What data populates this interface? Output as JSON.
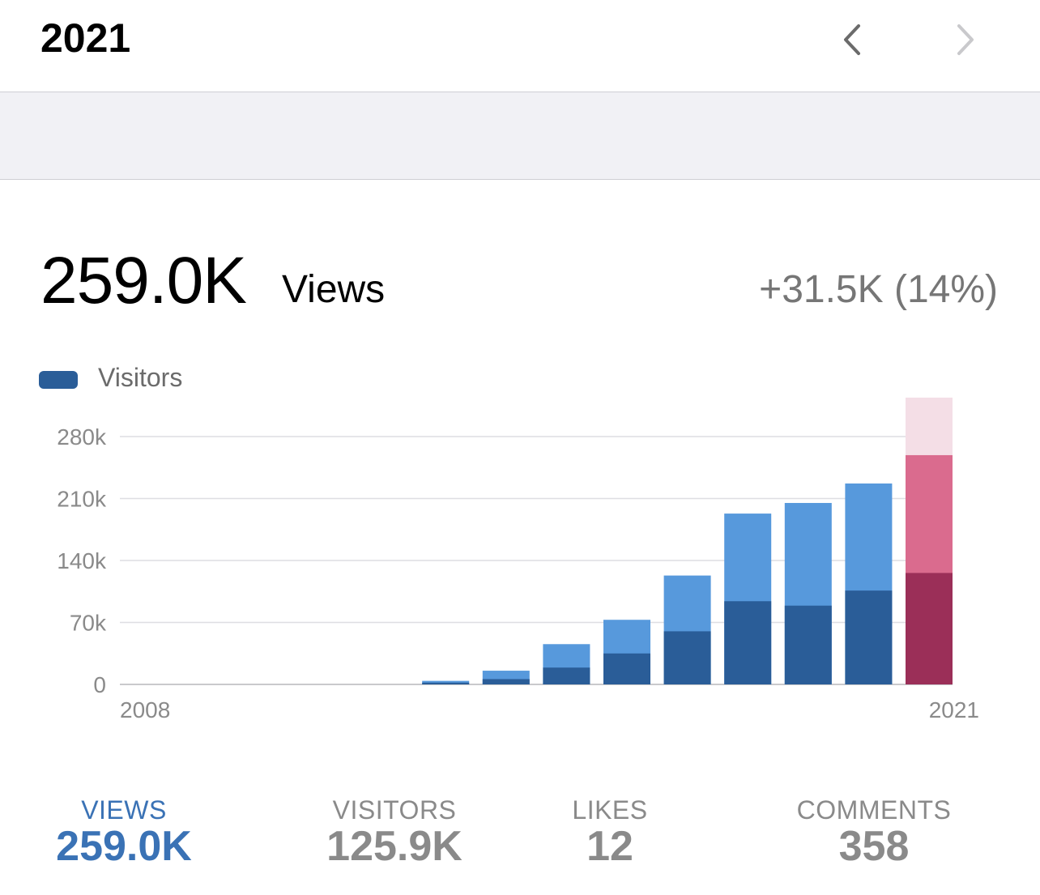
{
  "header": {
    "title": "2021"
  },
  "summary": {
    "value": "259.0K",
    "label": "Views",
    "delta": "+31.5K (14%)"
  },
  "legend": {
    "label": "Visitors"
  },
  "colors": {
    "views_blue": "#5799dc",
    "visitors_blue": "#2a5d98",
    "current_views": "#da6b8e",
    "current_visitors": "#9b2f58",
    "current_faint": "#f4dee6",
    "active_stat": "#3a72b5",
    "inactive_stat": "#8a8a8a"
  },
  "chart_data": {
    "type": "bar",
    "categories": [
      "2008",
      "2009",
      "2010",
      "2011",
      "2012",
      "2013",
      "2014",
      "2015",
      "2016",
      "2017",
      "2018",
      "2019",
      "2020",
      "2021"
    ],
    "series": [
      {
        "name": "Views",
        "values": [
          0,
          0,
          0,
          0,
          0,
          4000,
          15500,
          45500,
          73000,
          123000,
          193000,
          205000,
          227000,
          259000
        ]
      },
      {
        "name": "Visitors",
        "values": [
          0,
          0,
          0,
          0,
          0,
          2000,
          6000,
          19000,
          35000,
          60000,
          94000,
          89000,
          106000,
          125900
        ]
      }
    ],
    "highlight_overlay": {
      "category": "2021",
      "value": 324000
    },
    "ylim": [
      0,
      280000
    ],
    "y_ticks": [
      0,
      70000,
      140000,
      210000,
      280000
    ],
    "y_tick_labels": [
      "0",
      "70k",
      "140k",
      "210k",
      "280k"
    ],
    "x_tick_labels": [
      "2008",
      "2021"
    ],
    "grid": true,
    "legend_position": "top-left"
  },
  "stats": [
    {
      "label": "VIEWS",
      "value": "259.0K",
      "active": true
    },
    {
      "label": "VISITORS",
      "value": "125.9K",
      "active": false
    },
    {
      "label": "LIKES",
      "value": "12",
      "active": false
    },
    {
      "label": "COMMENTS",
      "value": "358",
      "active": false
    }
  ]
}
